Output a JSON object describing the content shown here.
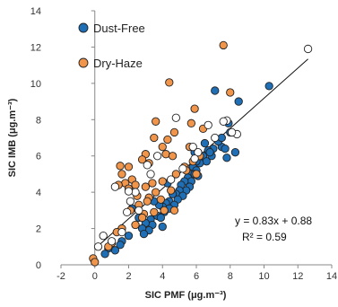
{
  "chart_data": {
    "type": "scatter",
    "xlabel": "SIC PMF (μg.m⁻³)",
    "ylabel": "SIC IMB (μg.m⁻³)",
    "xlim": [
      -2,
      14
    ],
    "ylim": [
      0,
      14
    ],
    "xticks": [
      "-2",
      "0",
      "2",
      "4",
      "6",
      "8",
      "10",
      "12",
      "14"
    ],
    "yticks": [
      "0",
      "2",
      "4",
      "6",
      "8",
      "10",
      "12",
      "14"
    ],
    "grid": "none",
    "legend_position": "top-left",
    "legend": [
      {
        "label": "Dust-Free",
        "color": "#1f6fb7"
      },
      {
        "label": "Dry-Haze",
        "color": "#f0954a"
      }
    ],
    "fit": {
      "slope": 0.83,
      "intercept": 0.88
    },
    "annotations": [
      "y = 0.83x + 0.88",
      "R² = 0.59"
    ],
    "series": [
      {
        "name": "Dust-Free",
        "color": "#1f6fb7",
        "points": [
          [
            10.3,
            9.85
          ],
          [
            8.5,
            9.0
          ],
          [
            7.1,
            9.6
          ],
          [
            7.9,
            7.8
          ],
          [
            8.3,
            6.2
          ],
          [
            7.5,
            6.5
          ],
          [
            7.8,
            5.9
          ],
          [
            7.0,
            6.4
          ],
          [
            7.3,
            6.8
          ],
          [
            6.9,
            6.0
          ],
          [
            6.7,
            6.3
          ],
          [
            6.4,
            6.0
          ],
          [
            6.6,
            5.7
          ],
          [
            6.2,
            5.6
          ],
          [
            6.0,
            5.7
          ],
          [
            5.8,
            5.4
          ],
          [
            6.0,
            5.2
          ],
          [
            5.6,
            5.0
          ],
          [
            5.9,
            5.0
          ],
          [
            5.5,
            4.8
          ],
          [
            5.7,
            4.6
          ],
          [
            5.3,
            4.6
          ],
          [
            5.1,
            4.4
          ],
          [
            5.6,
            4.3
          ],
          [
            5.4,
            4.1
          ],
          [
            5.0,
            4.1
          ],
          [
            4.8,
            3.9
          ],
          [
            5.2,
            3.8
          ],
          [
            4.6,
            3.9
          ],
          [
            4.9,
            3.6
          ],
          [
            4.4,
            3.5
          ],
          [
            4.7,
            3.3
          ],
          [
            4.2,
            3.4
          ],
          [
            4.4,
            3.1
          ],
          [
            4.0,
            3.2
          ],
          [
            3.8,
            3.3
          ],
          [
            4.1,
            2.9
          ],
          [
            3.7,
            2.7
          ],
          [
            3.5,
            3.5
          ],
          [
            3.9,
            2.6
          ],
          [
            3.3,
            2.5
          ],
          [
            3.4,
            2.2
          ],
          [
            3.0,
            2.3
          ],
          [
            3.2,
            1.9
          ],
          [
            2.8,
            2.0
          ],
          [
            2.6,
            2.6
          ],
          [
            2.9,
            1.7
          ],
          [
            2.2,
            3.1
          ],
          [
            2.0,
            1.6
          ],
          [
            1.6,
            1.3
          ],
          [
            1.5,
            1.1
          ],
          [
            1.2,
            0.8
          ],
          [
            0.8,
            0.9
          ],
          [
            0.6,
            0.6
          ],
          [
            4.0,
            2.1
          ],
          [
            4.3,
            4.5
          ],
          [
            5.9,
            6.2
          ],
          [
            6.5,
            6.7
          ],
          [
            6.1,
            4.9
          ],
          [
            7.5,
            7.0
          ],
          [
            6.8,
            6.2
          ],
          [
            7.7,
            6.4
          ],
          [
            8.0,
            7.3
          ]
        ]
      },
      {
        "name": "Dry-Haze",
        "color": "#f0954a",
        "points": [
          [
            7.6,
            12.1
          ],
          [
            4.4,
            10.05
          ],
          [
            8.0,
            9.5
          ],
          [
            5.9,
            8.6
          ],
          [
            3.6,
            7.9
          ],
          [
            4.7,
            7.3
          ],
          [
            5.7,
            7.8
          ],
          [
            3.5,
            7.0
          ],
          [
            4.0,
            6.5
          ],
          [
            4.2,
            6.1
          ],
          [
            4.6,
            6.0
          ],
          [
            5.8,
            5.7
          ],
          [
            5.3,
            5.4
          ],
          [
            3.0,
            6.1
          ],
          [
            3.2,
            5.6
          ],
          [
            2.8,
            5.8
          ],
          [
            1.5,
            5.45
          ],
          [
            2.0,
            5.4
          ],
          [
            1.6,
            5.0
          ],
          [
            2.2,
            4.7
          ],
          [
            1.8,
            4.5
          ],
          [
            1.4,
            4.4
          ],
          [
            2.0,
            4.2
          ],
          [
            3.0,
            4.3
          ],
          [
            3.4,
            4.5
          ],
          [
            4.0,
            4.6
          ],
          [
            2.5,
            3.8
          ],
          [
            3.2,
            3.7
          ],
          [
            4.5,
            4.1
          ],
          [
            2.6,
            3.3
          ],
          [
            2.1,
            3.0
          ],
          [
            2.9,
            2.8
          ],
          [
            3.5,
            2.9
          ],
          [
            4.7,
            3.0
          ],
          [
            4.1,
            3.0
          ],
          [
            1.6,
            2.0
          ],
          [
            1.3,
            1.8
          ],
          [
            1.0,
            1.2
          ],
          [
            0.8,
            1.0
          ],
          [
            -0.1,
            0.35
          ],
          [
            0.0,
            0.15
          ],
          [
            2.4,
            2.2
          ],
          [
            2.8,
            2.6
          ],
          [
            4.8,
            5.0
          ],
          [
            3.6,
            4.0
          ],
          [
            3.9,
            3.6
          ],
          [
            2.4,
            4.4
          ],
          [
            3.1,
            3.5
          ],
          [
            5.4,
            5.2
          ],
          [
            5.6,
            6.5
          ],
          [
            6.2,
            6.0
          ],
          [
            6.0,
            5.0
          ],
          [
            4.3,
            6.9
          ],
          [
            6.4,
            7.5
          ]
        ]
      },
      {
        "name": "",
        "color": "#ffffff",
        "points": [
          [
            12.6,
            11.9
          ],
          [
            8.4,
            7.2
          ],
          [
            7.8,
            7.95
          ],
          [
            7.6,
            7.9
          ],
          [
            8.1,
            7.3
          ],
          [
            7.1,
            7.0
          ],
          [
            6.7,
            7.7
          ],
          [
            5.8,
            6.5
          ],
          [
            6.1,
            6.2
          ],
          [
            5.9,
            5.85
          ],
          [
            4.8,
            8.1
          ],
          [
            3.7,
            6.0
          ],
          [
            3.1,
            5.5
          ],
          [
            3.3,
            5.0
          ],
          [
            2.4,
            4.0
          ],
          [
            2.0,
            4.05
          ],
          [
            2.1,
            3.5
          ],
          [
            2.6,
            3.0
          ],
          [
            1.9,
            2.9
          ],
          [
            1.2,
            4.3
          ],
          [
            1.6,
            1.8
          ],
          [
            1.0,
            1.3
          ],
          [
            0.5,
            1.6
          ],
          [
            0.2,
            1.0
          ],
          [
            4.5,
            4.7
          ],
          [
            5.2,
            5.3
          ]
        ]
      }
    ]
  }
}
